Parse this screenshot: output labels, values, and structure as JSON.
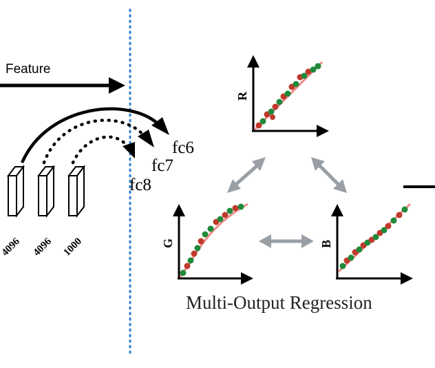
{
  "feature_label": "Feature",
  "layers": [
    {
      "label": "fc6",
      "size": "4096"
    },
    {
      "label": "fc7",
      "size": "4096"
    },
    {
      "label": "fc8",
      "size": "1000"
    }
  ],
  "plots": {
    "r": {
      "axis_label": "R"
    },
    "g": {
      "axis_label": "G"
    },
    "b": {
      "axis_label": "B"
    }
  },
  "caption": "Multi-Output Regression",
  "colors": {
    "arrow": "#000000",
    "divider": "#2f7fd0",
    "double_arrow": "#9a9fa6",
    "fit_line": "#f08a8a",
    "point_red": "#c0392b",
    "point_green": "#1f8a3a"
  }
}
